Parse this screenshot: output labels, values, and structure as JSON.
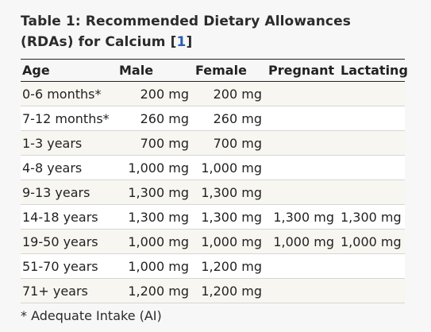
{
  "title": {
    "text": "Table 1: Recommended Dietary Allowances (RDAs) for Calcium [",
    "ref": "1",
    "close": "]"
  },
  "headers": [
    "Age",
    "Male",
    "Female",
    "Pregnant",
    "Lactating"
  ],
  "rows": [
    [
      "0-6 months*",
      "200 mg",
      "200 mg",
      "",
      ""
    ],
    [
      "7-12 months*",
      "260 mg",
      "260 mg",
      "",
      ""
    ],
    [
      "1-3 years",
      "700 mg",
      "700 mg",
      "",
      ""
    ],
    [
      "4-8 years",
      "1,000 mg",
      "1,000 mg",
      "",
      ""
    ],
    [
      "9-13 years",
      "1,300 mg",
      "1,300 mg",
      "",
      ""
    ],
    [
      "14-18 years",
      "1,300 mg",
      "1,300 mg",
      "1,300 mg",
      "1,300 mg"
    ],
    [
      "19-50 years",
      "1,000 mg",
      "1,000 mg",
      "1,000 mg",
      "1,000 mg"
    ],
    [
      "51-70 years",
      "1,000 mg",
      "1,200 mg",
      "",
      ""
    ],
    [
      "71+ years",
      "1,200 mg",
      "1,200 mg",
      "",
      ""
    ]
  ],
  "footnote": "* Adequate Intake (AI)"
}
